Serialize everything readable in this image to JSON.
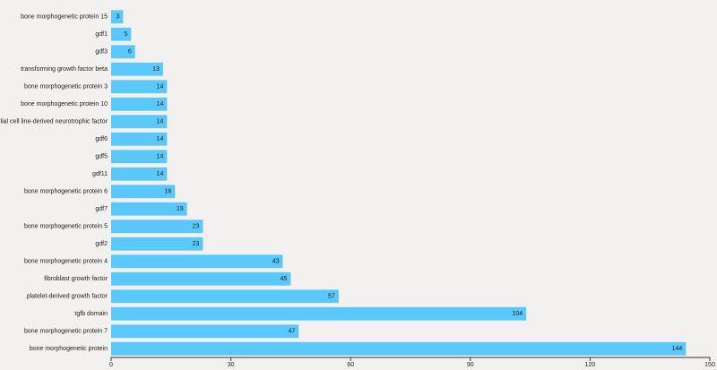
{
  "chart_data": {
    "type": "bar",
    "orientation": "horizontal",
    "categories": [
      "bone morphogenetic protein 15",
      "gdf1",
      "gdf3",
      "transforming growth factor beta",
      "bone morphogenetic protein 3",
      "bone morphogenetic protein 10",
      "glial cell line-derived neurotrophic factor",
      "gdf6",
      "gdf5",
      "gdf11",
      "bone morphogenetic protein 6",
      "gdf7",
      "bone morphogenetic protein 5",
      "gdf2",
      "bone morphogenetic protein 4",
      "fibroblast growth factor",
      "platelet-derived growth factor",
      "tgfb domain",
      "bone morphogenetic protein 7",
      "bone morphogenetic protein"
    ],
    "values": [
      3,
      5,
      6,
      13,
      14,
      14,
      14,
      14,
      14,
      14,
      16,
      19,
      23,
      23,
      43,
      45,
      57,
      104,
      47,
      144
    ],
    "color": "#5ac8fa",
    "xlim": [
      0,
      150
    ],
    "xticks": [
      0,
      30,
      60,
      90,
      120,
      150
    ]
  }
}
